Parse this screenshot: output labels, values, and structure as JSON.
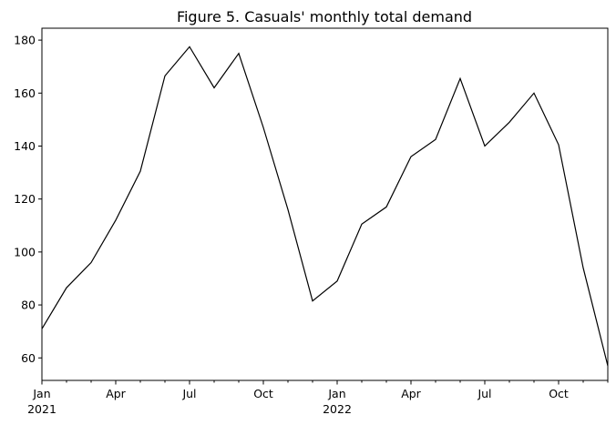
{
  "chart_data": {
    "type": "line",
    "title": "Figure 5. Casuals' monthly total demand",
    "xlabel": "",
    "ylabel": "",
    "x": [
      "2021-01",
      "2021-02",
      "2021-03",
      "2021-04",
      "2021-05",
      "2021-06",
      "2021-07",
      "2021-08",
      "2021-09",
      "2021-10",
      "2021-11",
      "2021-12",
      "2022-01",
      "2022-02",
      "2022-03",
      "2022-04",
      "2022-05",
      "2022-06",
      "2022-07",
      "2022-08",
      "2022-09",
      "2022-10",
      "2022-11",
      "2022-12"
    ],
    "series": [
      {
        "values": [
          71,
          86.5,
          96,
          112,
          130.5,
          166.5,
          177.5,
          162,
          175,
          147,
          116,
          81.5,
          89,
          110.5,
          117,
          136,
          142.5,
          165.5,
          140,
          149,
          160,
          140.5,
          94,
          57
        ]
      }
    ],
    "ylim": [
      51.5,
      184.5
    ],
    "yticks": [
      60,
      80,
      100,
      120,
      140,
      160,
      180
    ],
    "xticks": [
      {
        "x": "2021-01",
        "label": "Jan",
        "sublabel": "2021"
      },
      {
        "x": "2021-04",
        "label": "Apr",
        "sublabel": ""
      },
      {
        "x": "2021-07",
        "label": "Jul",
        "sublabel": ""
      },
      {
        "x": "2021-10",
        "label": "Oct",
        "sublabel": ""
      },
      {
        "x": "2022-01",
        "label": "Jan",
        "sublabel": "2022"
      },
      {
        "x": "2022-04",
        "label": "Apr",
        "sublabel": ""
      },
      {
        "x": "2022-07",
        "label": "Jul",
        "sublabel": ""
      },
      {
        "x": "2022-10",
        "label": "Oct",
        "sublabel": ""
      }
    ],
    "grid": false,
    "legend": "none",
    "line_color": "#000000"
  }
}
